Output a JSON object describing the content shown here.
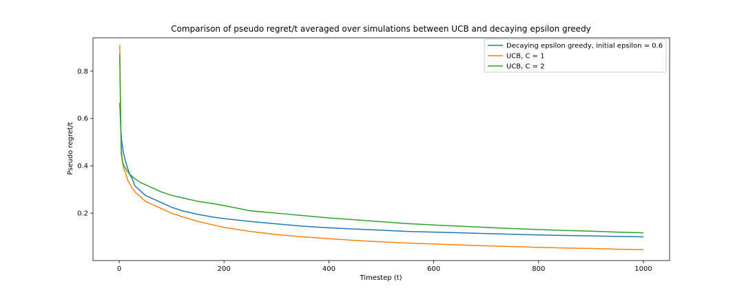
{
  "chart_data": {
    "type": "line",
    "title": "Comparison of pseudo regret/t averaged over simulations between UCB and decaying epsilon greedy",
    "xlabel": "Timestep (t)",
    "ylabel": "Pseudo regret/t",
    "xlim": [
      -50,
      1050
    ],
    "ylim": [
      0.0,
      0.94
    ],
    "xticks": [
      0,
      200,
      400,
      600,
      800,
      1000
    ],
    "yticks": [
      0.2,
      0.4,
      0.6,
      0.8
    ],
    "grid": false,
    "legend_position": "top-right",
    "series": [
      {
        "name": "Decaying epsilon greedy, initial epsilon = 0.6",
        "color": "#1f77b4",
        "x": [
          1,
          3,
          5,
          8,
          12,
          16,
          20,
          25,
          30,
          40,
          50,
          60,
          70,
          80,
          100,
          120,
          150,
          180,
          200,
          250,
          300,
          350,
          400,
          450,
          500,
          550,
          600,
          650,
          700,
          750,
          800,
          850,
          900,
          950,
          1000
        ],
        "y": [
          0.665,
          0.56,
          0.5,
          0.455,
          0.42,
          0.39,
          0.365,
          0.345,
          0.315,
          0.295,
          0.275,
          0.265,
          0.255,
          0.245,
          0.225,
          0.21,
          0.195,
          0.183,
          0.177,
          0.165,
          0.155,
          0.145,
          0.138,
          0.133,
          0.128,
          0.123,
          0.12,
          0.117,
          0.114,
          0.111,
          0.108,
          0.106,
          0.104,
          0.102,
          0.1
        ]
      },
      {
        "name": "UCB, C = 1",
        "color": "#ff7f0e",
        "x": [
          1,
          2,
          3,
          4,
          6,
          8,
          12,
          16,
          20,
          25,
          30,
          40,
          50,
          60,
          70,
          80,
          100,
          120,
          150,
          180,
          200,
          250,
          300,
          350,
          400,
          450,
          500,
          550,
          600,
          650,
          700,
          750,
          800,
          850,
          900,
          950,
          1000
        ],
        "y": [
          0.91,
          0.75,
          0.6,
          0.47,
          0.42,
          0.395,
          0.37,
          0.34,
          0.325,
          0.305,
          0.29,
          0.27,
          0.25,
          0.24,
          0.23,
          0.22,
          0.2,
          0.185,
          0.165,
          0.15,
          0.14,
          0.123,
          0.11,
          0.1,
          0.092,
          0.085,
          0.079,
          0.074,
          0.07,
          0.066,
          0.062,
          0.059,
          0.056,
          0.053,
          0.051,
          0.048,
          0.046
        ]
      },
      {
        "name": "UCB, C = 2",
        "color": "#2ca02c",
        "x": [
          1,
          2,
          3,
          4,
          6,
          8,
          12,
          16,
          20,
          25,
          30,
          40,
          50,
          60,
          70,
          80,
          100,
          120,
          150,
          180,
          200,
          250,
          300,
          350,
          400,
          450,
          500,
          550,
          600,
          650,
          700,
          750,
          800,
          850,
          900,
          950,
          1000
        ],
        "y": [
          0.87,
          0.7,
          0.56,
          0.45,
          0.42,
          0.405,
          0.39,
          0.375,
          0.365,
          0.355,
          0.345,
          0.33,
          0.32,
          0.31,
          0.3,
          0.29,
          0.275,
          0.265,
          0.25,
          0.24,
          0.232,
          0.21,
          0.2,
          0.19,
          0.18,
          0.172,
          0.164,
          0.156,
          0.15,
          0.145,
          0.14,
          0.135,
          0.131,
          0.127,
          0.124,
          0.12,
          0.117
        ]
      }
    ]
  }
}
